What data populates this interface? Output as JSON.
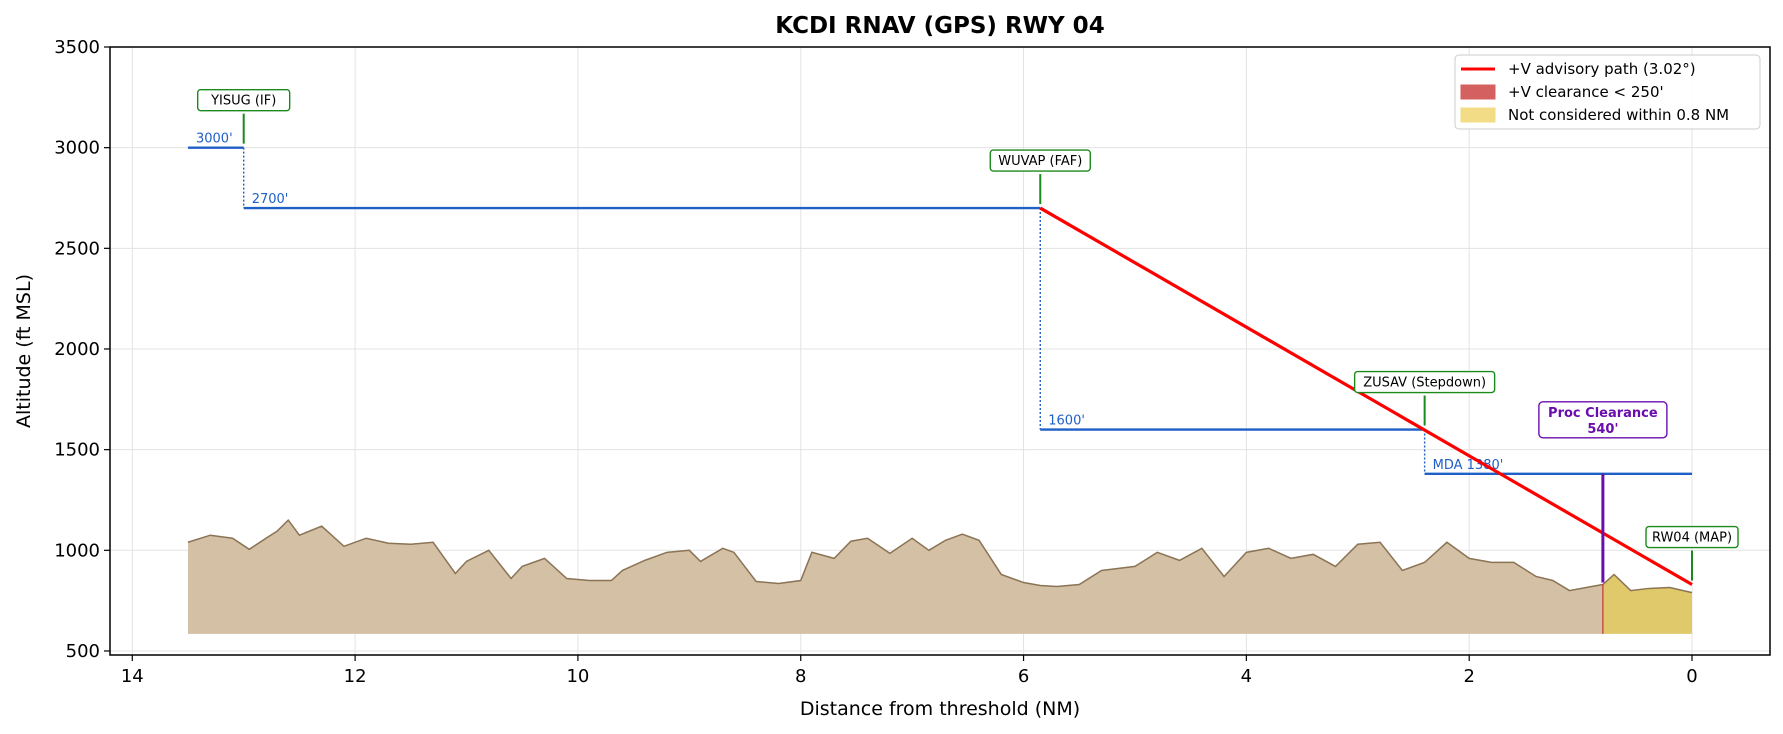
{
  "chart_data": {
    "type": "line",
    "title": "KCDI  RNAV (GPS) RWY 04",
    "xlabel": "Distance from threshold (NM)",
    "ylabel": "Altitude (ft MSL)",
    "xlim": [
      14.2,
      -0.7
    ],
    "ylim": [
      480,
      3500
    ],
    "x_ticks": [
      14,
      12,
      10,
      8,
      6,
      4,
      2,
      0
    ],
    "y_ticks": [
      500,
      1000,
      1500,
      2000,
      2500,
      3000,
      3500
    ],
    "grid": true,
    "legend_position": "top-right",
    "colors": {
      "terrain_fill": "#d4c0a4",
      "terrain_line": "#8b7355",
      "path": "#ff0000",
      "altitude_segment": "#1f5fc8",
      "fix_marker": "#1a8a1a",
      "clearance": "#6a0dad",
      "not_considered": "#e0c96a",
      "low_clearance": "#c83232"
    },
    "legend": [
      {
        "label": "+V advisory path (3.02°)",
        "kind": "line",
        "color": "#ff0000"
      },
      {
        "label": "+V clearance < 250'",
        "kind": "patch",
        "color": "#d46060"
      },
      {
        "label": "Not considered within 0.8 NM",
        "kind": "patch",
        "color": "#f2dc86"
      }
    ],
    "altitude_segments": [
      {
        "label": "3000'",
        "from": 13.5,
        "to": 13.0,
        "alt": 3000
      },
      {
        "label": "2700'",
        "from": 13.0,
        "to": 5.85,
        "alt": 2700
      },
      {
        "label": "1600'",
        "from": 5.85,
        "to": 2.4,
        "alt": 1600
      },
      {
        "label": "MDA 1380'",
        "from": 2.4,
        "to": 0.0,
        "alt": 1380
      }
    ],
    "fixes": [
      {
        "name": "YISUG (IF)",
        "x": 13.0,
        "alt": 3000
      },
      {
        "name": "WUVAP (FAF)",
        "x": 5.85,
        "alt": 2700
      },
      {
        "name": "ZUSAV (Stepdown)",
        "x": 2.4,
        "alt": 1600
      },
      {
        "name": "RW04 (MAP)",
        "x": 0.0,
        "alt": 830
      }
    ],
    "advisory_path": {
      "x": [
        5.85,
        0.0
      ],
      "y": [
        2700,
        830
      ],
      "angle_deg": 3.02
    },
    "proc_clearance": {
      "label_line1": "Proc Clearance",
      "label_line2": "540'",
      "x": 0.8,
      "from_alt": 840,
      "to_alt": 1380
    },
    "not_considered_from_nm": 0.8,
    "terrain_base": 585,
    "terrain": {
      "x": [
        13.5,
        13.3,
        13.1,
        12.95,
        12.8,
        12.7,
        12.6,
        12.5,
        12.3,
        12.1,
        11.9,
        11.7,
        11.5,
        11.3,
        11.1,
        11.0,
        10.8,
        10.6,
        10.5,
        10.3,
        10.1,
        9.9,
        9.7,
        9.6,
        9.4,
        9.2,
        9.0,
        8.9,
        8.7,
        8.6,
        8.4,
        8.2,
        8.0,
        7.9,
        7.7,
        7.55,
        7.4,
        7.2,
        7.0,
        6.85,
        6.7,
        6.55,
        6.4,
        6.2,
        6.0,
        5.85,
        5.7,
        5.5,
        5.3,
        5.0,
        4.8,
        4.6,
        4.4,
        4.2,
        4.0,
        3.8,
        3.6,
        3.4,
        3.2,
        3.0,
        2.8,
        2.6,
        2.4,
        2.2,
        2.0,
        1.8,
        1.6,
        1.4,
        1.25,
        1.1,
        0.9,
        0.8,
        0.7,
        0.55,
        0.4,
        0.2,
        0.0
      ],
      "y": [
        1040,
        1075,
        1060,
        1005,
        1060,
        1095,
        1150,
        1075,
        1120,
        1020,
        1060,
        1035,
        1030,
        1040,
        885,
        945,
        1000,
        860,
        920,
        960,
        860,
        850,
        850,
        900,
        950,
        990,
        1000,
        945,
        1010,
        990,
        845,
        835,
        850,
        990,
        960,
        1045,
        1060,
        985,
        1060,
        1000,
        1050,
        1080,
        1050,
        880,
        840,
        825,
        820,
        830,
        900,
        920,
        990,
        950,
        1010,
        870,
        990,
        1010,
        960,
        980,
        920,
        1030,
        1040,
        900,
        940,
        1040,
        960,
        940,
        940,
        870,
        850,
        800,
        820,
        830,
        880,
        800,
        810,
        815,
        790
      ]
    }
  }
}
